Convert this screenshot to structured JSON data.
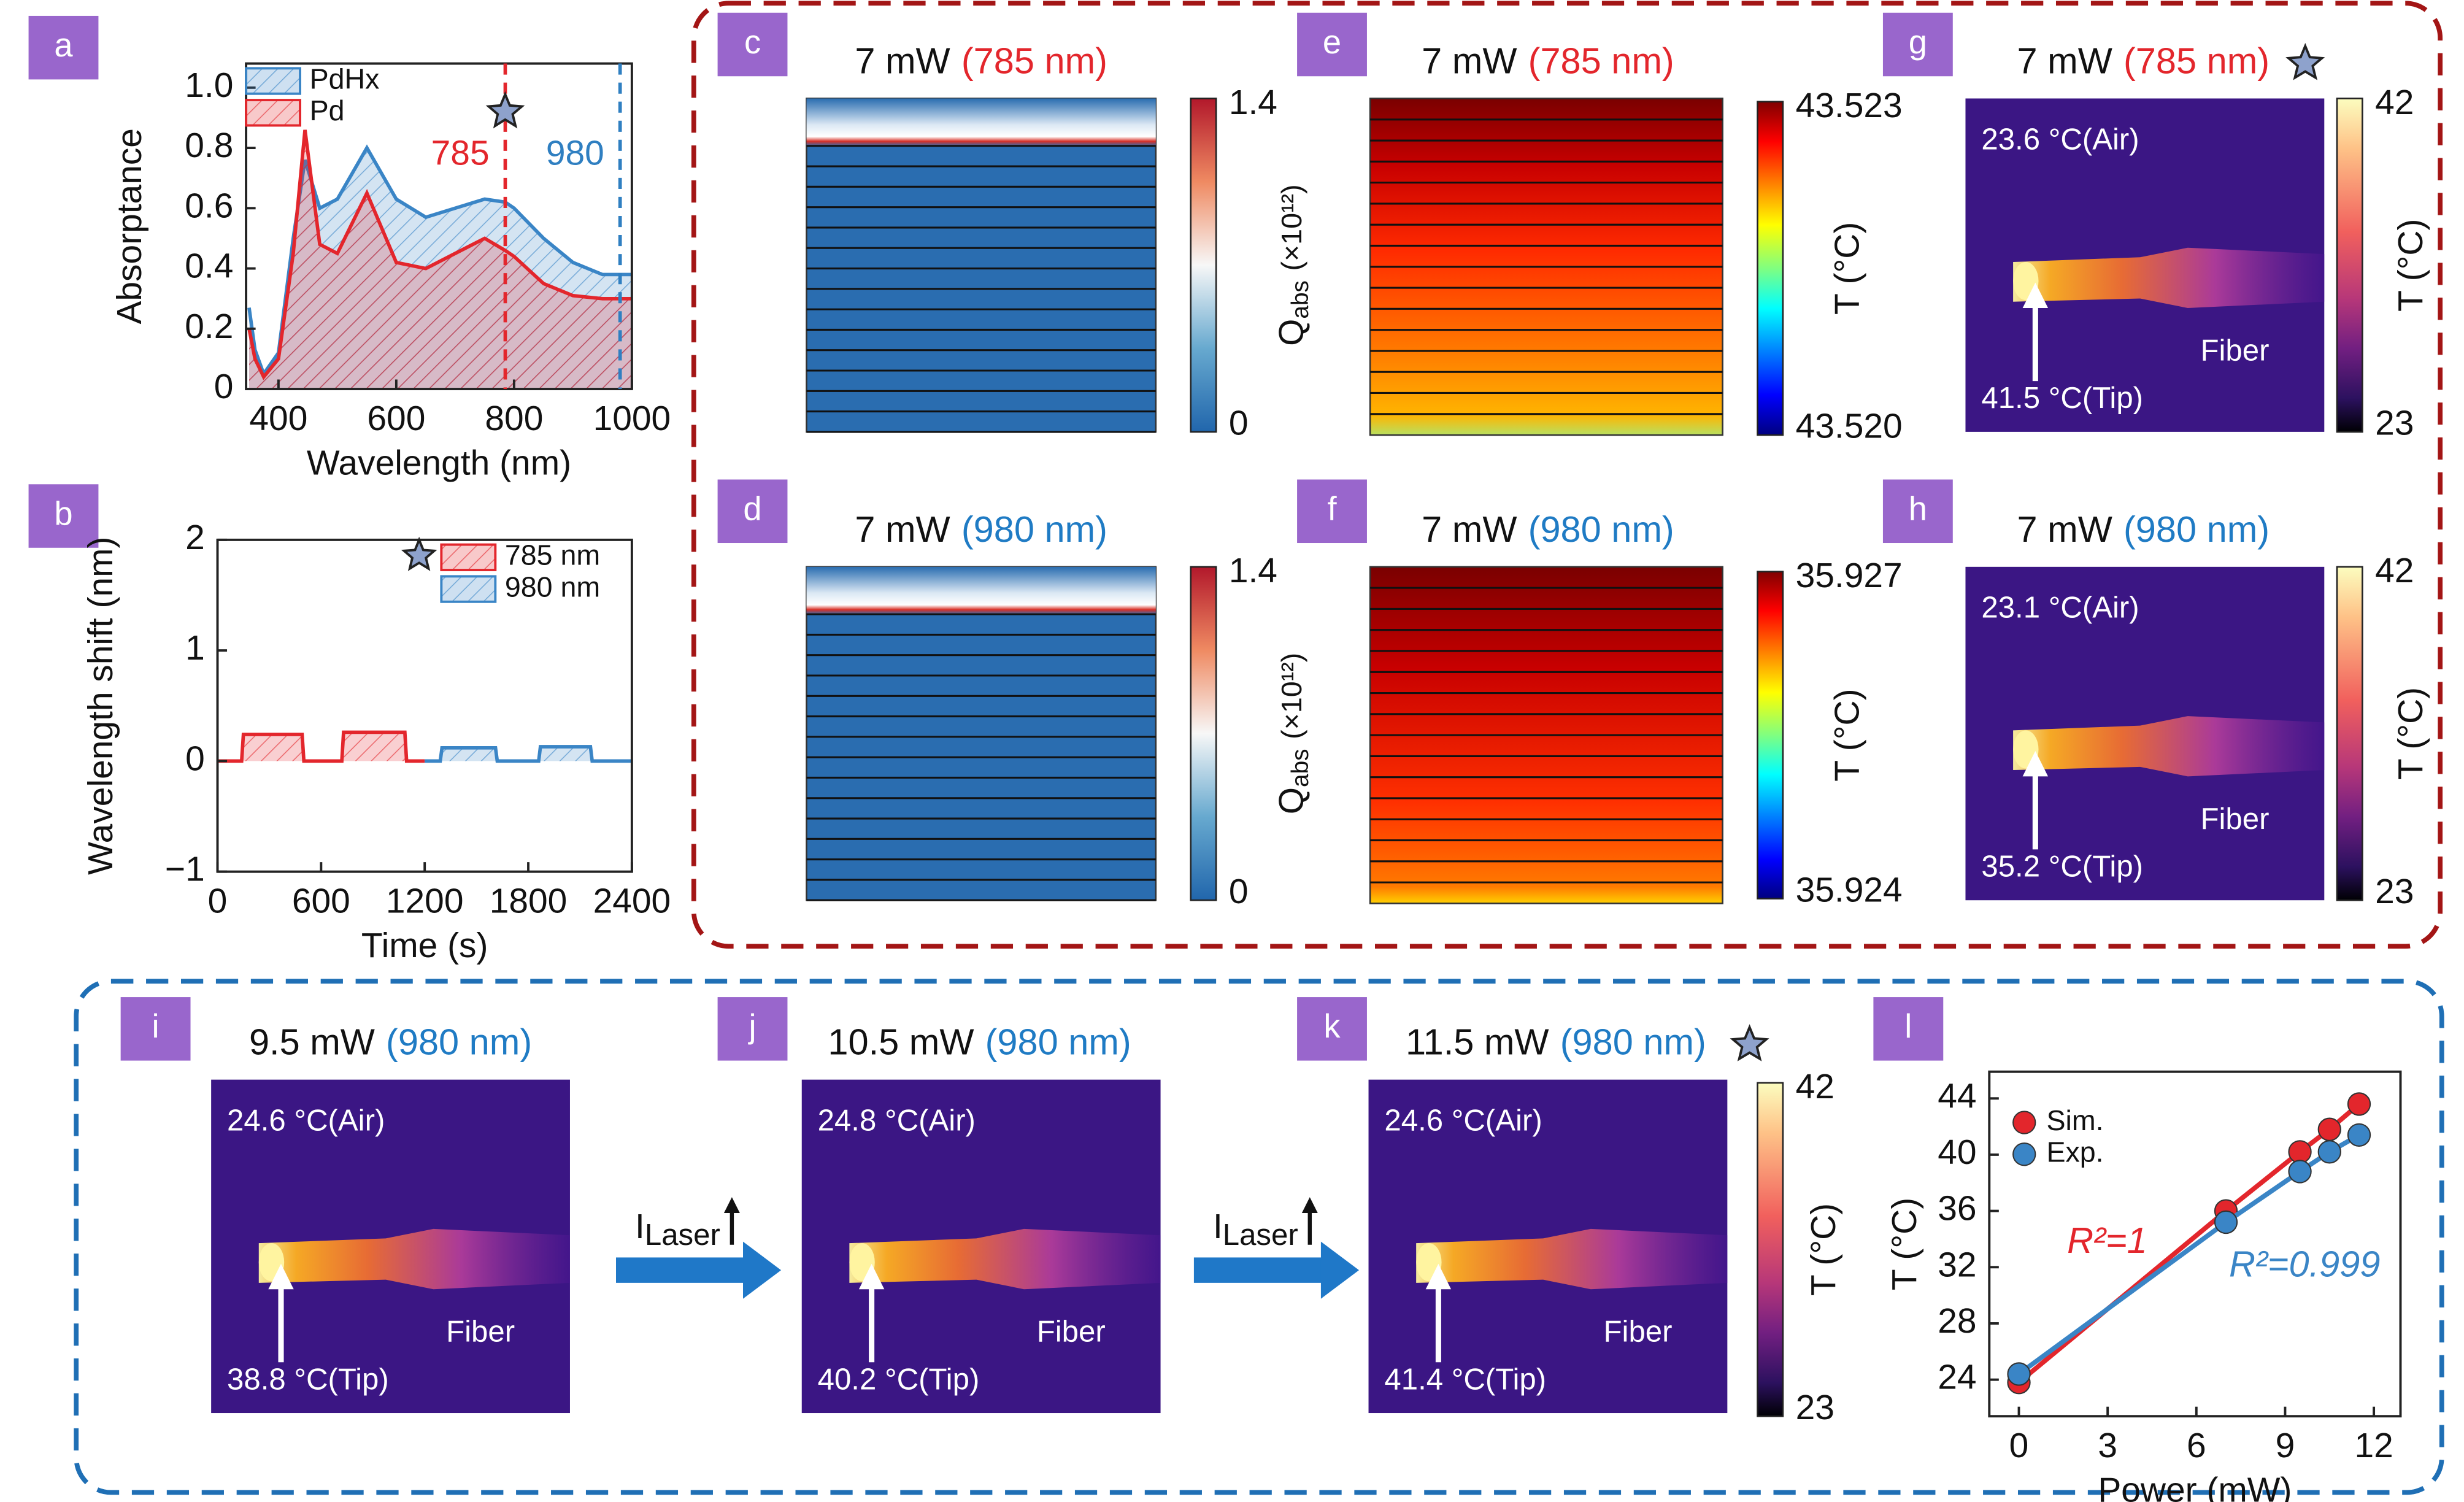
{
  "chart_data": [
    {
      "type": "area",
      "panel": "a",
      "xlabel": "Wavelength (nm)",
      "ylabel": "Absorptance",
      "x": [
        350,
        360,
        375,
        400,
        425,
        445,
        470,
        500,
        550,
        600,
        650,
        700,
        750,
        785,
        800,
        850,
        900,
        950,
        1000
      ],
      "xlim": [
        345,
        1000
      ],
      "ylim": [
        0,
        1.08
      ],
      "xticks": [
        400,
        600,
        800,
        1000
      ],
      "yticks": [
        0,
        0.2,
        0.4,
        0.6,
        0.8,
        {
          "value": 1,
          "label": "1.0"
        }
      ],
      "series": [
        {
          "name": "PdHx",
          "color": "#3a85c6",
          "values": [
            0.27,
            0.13,
            0.05,
            0.12,
            0.5,
            0.76,
            0.6,
            0.63,
            0.8,
            0.63,
            0.57,
            0.6,
            0.63,
            0.62,
            0.6,
            0.5,
            0.42,
            0.38,
            0.38
          ]
        },
        {
          "name": "Pd",
          "color": "#e3262c",
          "values": [
            0.2,
            0.1,
            0.04,
            0.1,
            0.45,
            0.86,
            0.48,
            0.45,
            0.65,
            0.42,
            0.4,
            0.45,
            0.5,
            0.46,
            0.44,
            0.35,
            0.31,
            0.3,
            0.3
          ]
        }
      ],
      "markers": [
        785,
        980
      ],
      "marker_colors": [
        "#e3262c",
        "#2f7fc1"
      ],
      "star": {
        "x": 785,
        "y": 0.92
      },
      "legend": "upper left"
    },
    {
      "type": "area",
      "panel": "b",
      "xlabel": "Time (s)",
      "ylabel": "Wavelength shift (nm)",
      "xlim": [
        0,
        2400
      ],
      "ylim": [
        -1,
        2
      ],
      "xticks": [
        0,
        600,
        1200,
        1800,
        2400
      ],
      "yticks": [
        {
          "value": -1,
          "label": "−1"
        },
        0,
        1,
        2
      ],
      "series": [
        {
          "name": "785 nm",
          "color": "#e3262c",
          "x": [
            0,
            140,
            150,
            490,
            500,
            720,
            730,
            1085,
            1095,
            1200
          ],
          "values": [
            0,
            0,
            0.24,
            0.24,
            0,
            0,
            0.26,
            0.26,
            0,
            0
          ]
        },
        {
          "name": "980 nm",
          "color": "#3a85c6",
          "x": [
            1200,
            1290,
            1300,
            1610,
            1620,
            1860,
            1870,
            2160,
            2170,
            2400
          ],
          "values": [
            0,
            0,
            0.12,
            0.12,
            0,
            0,
            0.13,
            0.13,
            0,
            0
          ]
        }
      ],
      "legend": "upper right"
    },
    {
      "type": "scatter",
      "panel": "l",
      "xlabel": "Power (mW)",
      "ylabel": "T (°C)",
      "xlim": [
        -1,
        12.9
      ],
      "ylim": [
        21.4,
        45.9
      ],
      "xticks": [
        0,
        3,
        6,
        9,
        12
      ],
      "yticks": [
        24,
        28,
        32,
        36,
        40,
        44
      ],
      "series": [
        {
          "name": "Sim.",
          "color": "#e3262c",
          "x": [
            0,
            7,
            9.5,
            10.5,
            11.5
          ],
          "values": [
            23.8,
            36,
            40.2,
            41.8,
            43.6
          ]
        },
        {
          "name": "Exp.",
          "color": "#3a85c6",
          "x": [
            0,
            7,
            9.5,
            10.5,
            11.5
          ],
          "values": [
            24.4,
            35.2,
            38.8,
            40.2,
            41.4
          ]
        }
      ],
      "annotations": [
        "R²=1",
        "R²=0.999"
      ],
      "legend": "upper left"
    }
  ],
  "panels": {
    "c": {
      "label": "c",
      "power": "7 mW",
      "wavelength": "(785 nm)",
      "wavelength_color": "#e3262c",
      "colorbar": {
        "max": "1.4",
        "min": "0",
        "symbol": "Q",
        "subscript": "abs",
        "unit": "(×10¹²)"
      }
    },
    "d": {
      "label": "d",
      "power": "7 mW",
      "wavelength": "(980 nm)",
      "wavelength_color": "#1f7bc4",
      "colorbar": {
        "max": "1.4",
        "min": "0",
        "symbol": "Q",
        "subscript": "abs",
        "unit": "(×10¹²)"
      }
    },
    "e": {
      "label": "e",
      "power": "7 mW",
      "wavelength": "(785 nm)",
      "wavelength_color": "#e3262c",
      "colorbar": {
        "max": "43.523",
        "min": "43.520",
        "title": "T (°C)"
      }
    },
    "f": {
      "label": "f",
      "power": "7 mW",
      "wavelength": "(980 nm)",
      "wavelength_color": "#1f7bc4",
      "colorbar": {
        "max": "35.927",
        "min": "35.924",
        "title": "T (°C)"
      }
    },
    "g": {
      "label": "g",
      "power": "7 mW",
      "wavelength": "(785 nm)",
      "wavelength_color": "#e3262c",
      "air": "23.6 °C(Air)",
      "tip": "41.5 °C(Tip)",
      "fiber": "Fiber",
      "colorbar": {
        "max": "42",
        "min": "23",
        "title": "T (°C)"
      }
    },
    "h": {
      "label": "h",
      "power": "7 mW",
      "wavelength": "(980 nm)",
      "wavelength_color": "#1f7bc4",
      "air": "23.1 °C(Air)",
      "tip": "35.2 °C(Tip)",
      "fiber": "Fiber",
      "colorbar": {
        "max": "42",
        "min": "23",
        "title": "T (°C)"
      }
    },
    "i": {
      "label": "i",
      "power": "9.5 mW",
      "wavelength": "(980 nm)",
      "wavelength_color": "#1f7bc4",
      "air": "24.6 °C(Air)",
      "tip": "38.8 °C(Tip)",
      "fiber": "Fiber"
    },
    "j": {
      "label": "j",
      "power": "10.5 mW",
      "wavelength": "(980 nm)",
      "wavelength_color": "#1f7bc4",
      "air": "24.8 °C(Air)",
      "tip": "40.2 °C(Tip)",
      "fiber": "Fiber"
    },
    "k": {
      "label": "k",
      "power": "11.5 mW",
      "wavelength": "(980 nm)",
      "wavelength_color": "#1f7bc4",
      "air": "24.6 °C(Air)",
      "tip": "41.4 °C(Tip)",
      "fiber": "Fiber",
      "colorbar": {
        "max": "42",
        "min": "23",
        "title": "T (°C)"
      }
    },
    "laser": {
      "symbol": "I",
      "subscript": "Laser"
    }
  }
}
